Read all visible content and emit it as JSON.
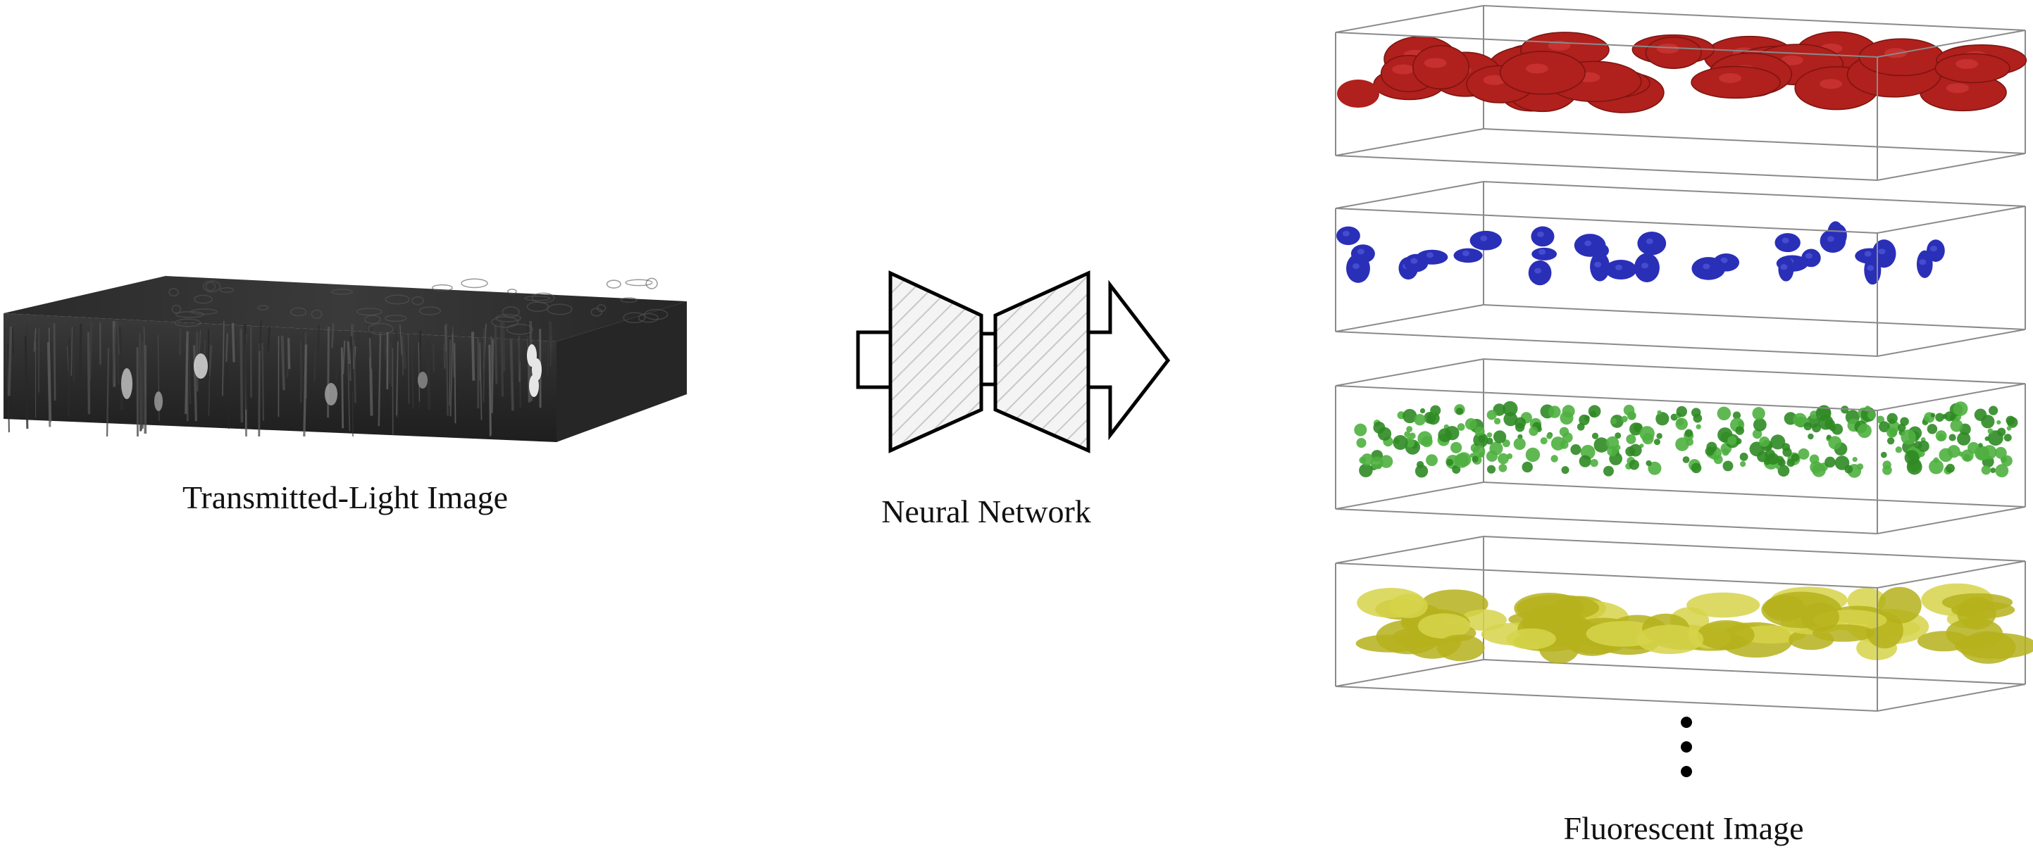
{
  "captions": {
    "input": "Transmitted-Light Image",
    "network": "Neural Network",
    "output": "Fluorescent Image"
  },
  "icons": {
    "input": "grayscale-3d-image-volume-icon",
    "network": "encoder-decoder-network-icon",
    "output_more": "vertical-ellipsis-icon"
  },
  "output_channels": [
    {
      "name": "red-channel",
      "color": "#b0201c",
      "highlight": "#d94040"
    },
    {
      "name": "blue-channel",
      "color": "#2a2fb8",
      "highlight": "#5a60e0"
    },
    {
      "name": "green-channel",
      "color": "#2f8a24",
      "highlight": "#4fb040"
    },
    {
      "name": "yellow-channel",
      "color": "#b5b21c",
      "highlight": "#d6d34a"
    }
  ]
}
